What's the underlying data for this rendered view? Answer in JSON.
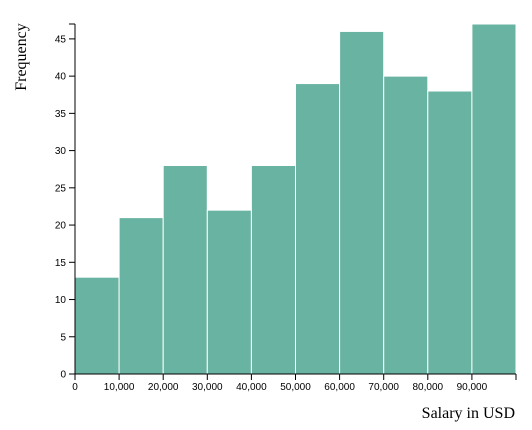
{
  "chart_data": {
    "type": "bar",
    "xlabel": "Salary in USD",
    "ylabel": "Frequency",
    "bin_edges": [
      0,
      10000,
      20000,
      30000,
      40000,
      50000,
      60000,
      70000,
      80000,
      90000,
      100000
    ],
    "values": [
      13,
      21,
      28,
      22,
      28,
      39,
      46,
      40,
      38,
      47
    ],
    "x_ticks": [
      {
        "value": 0,
        "label": "0"
      },
      {
        "value": 10000,
        "label": "10,000"
      },
      {
        "value": 20000,
        "label": "20,000"
      },
      {
        "value": 30000,
        "label": "30,000"
      },
      {
        "value": 40000,
        "label": "40,000"
      },
      {
        "value": 50000,
        "label": "50,000"
      },
      {
        "value": 60000,
        "label": "60,000"
      },
      {
        "value": 70000,
        "label": "70,000"
      },
      {
        "value": 80000,
        "label": "80,000"
      },
      {
        "value": 90000,
        "label": "90,000"
      },
      {
        "value": 100000,
        "label": ""
      }
    ],
    "y_ticks": [
      0,
      5,
      10,
      15,
      20,
      25,
      30,
      35,
      40,
      45
    ],
    "xlim": [
      0,
      100000
    ],
    "ylim": [
      0,
      47
    ],
    "grid": false,
    "bar_color": "#69b3a2",
    "bar_stroke": "#ffffff"
  }
}
